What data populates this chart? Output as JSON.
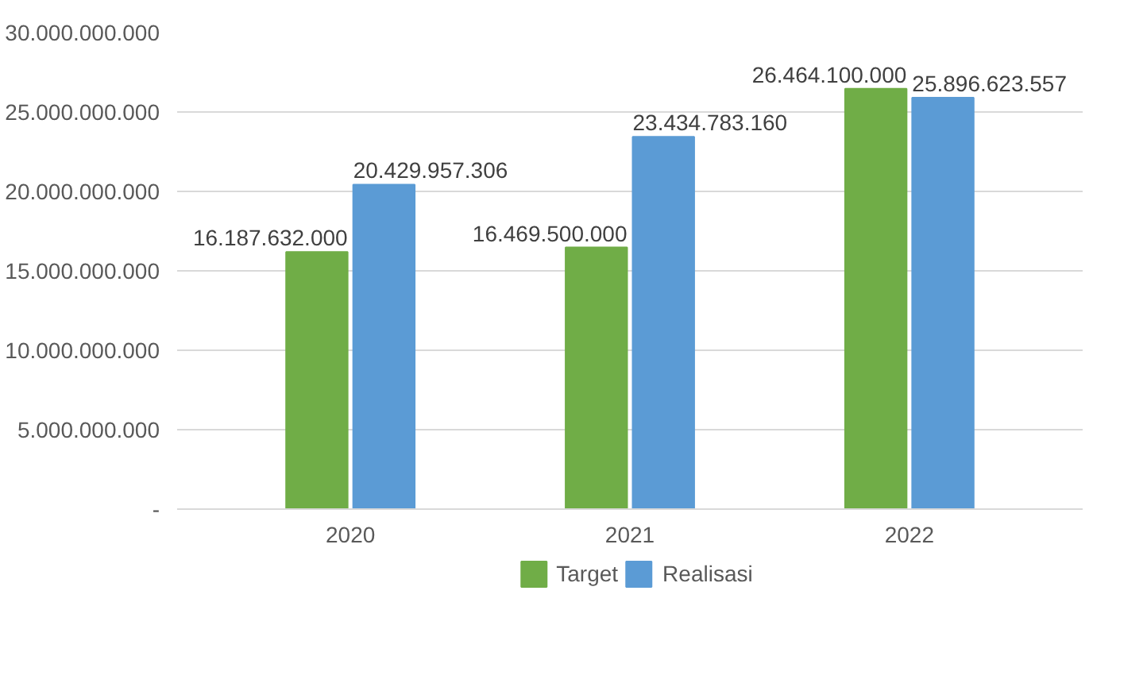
{
  "chart_data": {
    "type": "bar",
    "categories": [
      "2020",
      "2021",
      "2022"
    ],
    "series": [
      {
        "name": "Target",
        "color": "#70ad47",
        "values": [
          16187632000,
          16469500000,
          26464100000
        ],
        "value_labels": [
          "16.187.632.000",
          "16.469.500.000",
          "26.464.100.000"
        ]
      },
      {
        "name": "Realisasi",
        "color": "#5b9bd5",
        "values": [
          20429957306,
          23434783160,
          25896623557
        ],
        "value_labels": [
          "20.429.957.306",
          "23.434.783.160",
          "25.896.623.557"
        ]
      }
    ],
    "ylim": [
      0,
      30000000000
    ],
    "yticks": [
      {
        "value": 0,
        "label": "-"
      },
      {
        "value": 5000000000,
        "label": "5.000.000.000"
      },
      {
        "value": 10000000000,
        "label": "10.000.000.000"
      },
      {
        "value": 15000000000,
        "label": "15.000.000.000"
      },
      {
        "value": 20000000000,
        "label": "20.000.000.000"
      },
      {
        "value": 25000000000,
        "label": "25.000.000.000"
      },
      {
        "value": 30000000000,
        "label": "30.000.000.000"
      }
    ],
    "grid": "y",
    "legend": "bottom"
  }
}
